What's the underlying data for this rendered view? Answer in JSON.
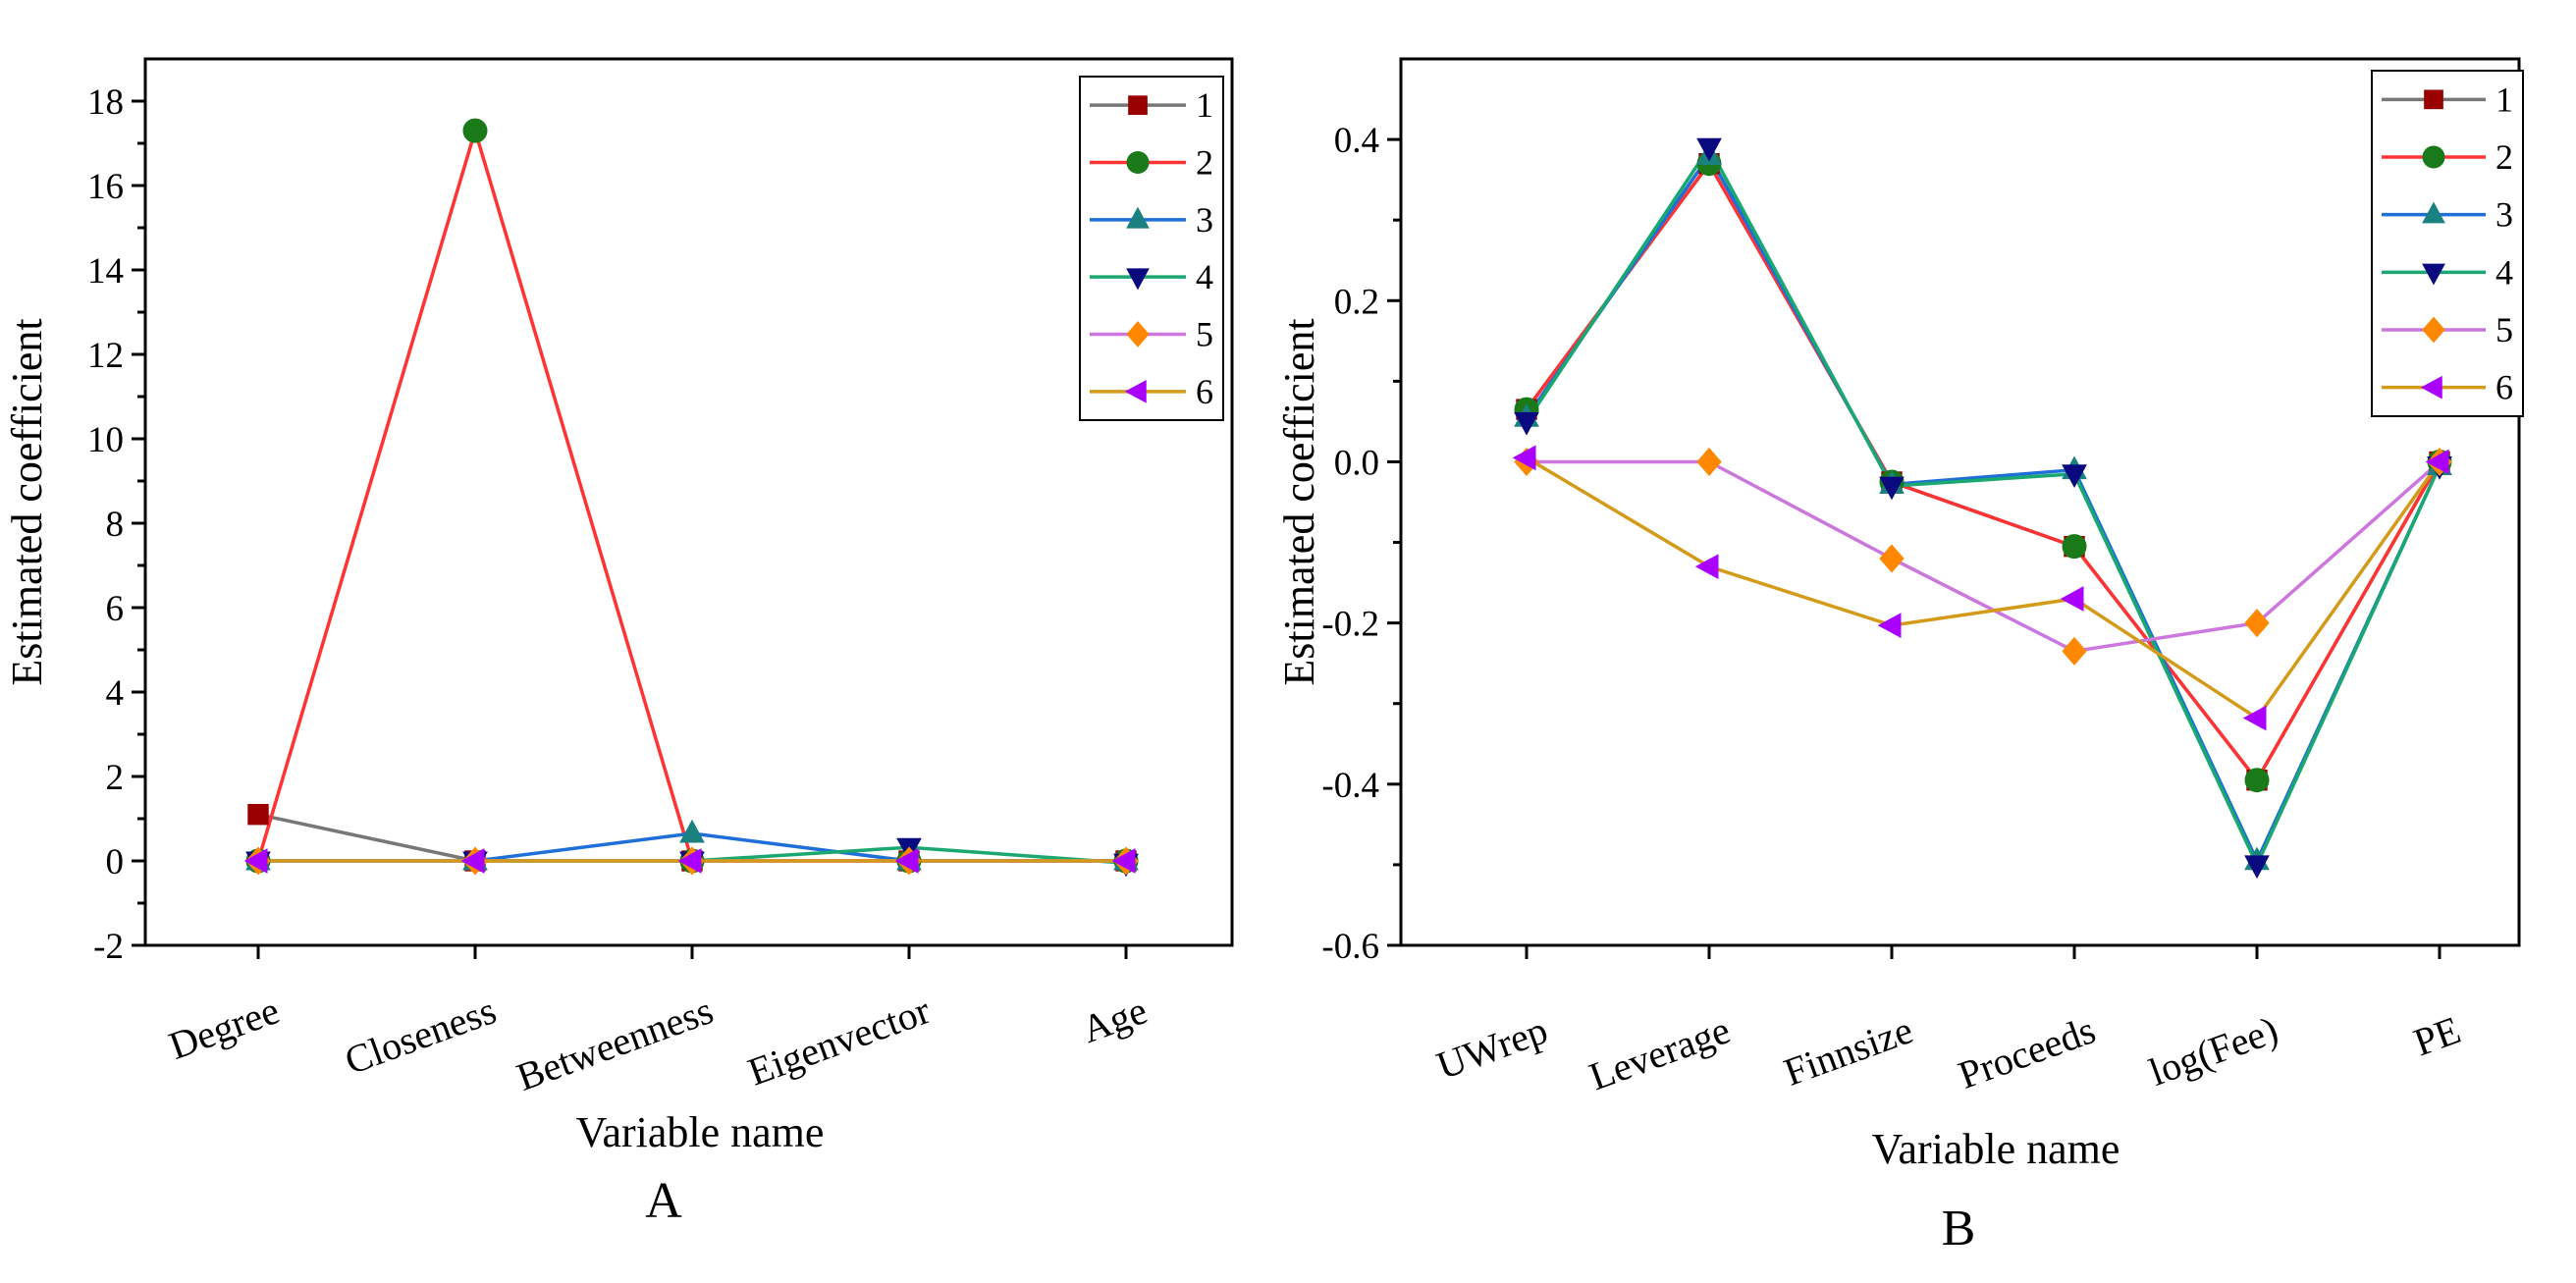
{
  "legend_names": [
    "1",
    "2",
    "3",
    "4",
    "5",
    "6"
  ],
  "chart_data": [
    {
      "type": "line",
      "panel_label": "A",
      "xlabel": "Variable name",
      "ylabel": "Estimated coefficient",
      "categories": [
        "Degree",
        "Closeness",
        "Betweenness",
        "Eigenvector",
        "Age"
      ],
      "ylim": [
        -2,
        19
      ],
      "yticks": [
        -2,
        0,
        2,
        4,
        6,
        8,
        10,
        12,
        14,
        16,
        18
      ],
      "ytick_labels": [
        "-2",
        "0",
        "2",
        "4",
        "6",
        "8",
        "10",
        "12",
        "14",
        "16",
        "18"
      ],
      "legend_position": "top-right",
      "series": [
        {
          "name": "1",
          "color": "#777777",
          "marker": "square",
          "marker_color": "#990000",
          "values": [
            1.1,
            0,
            0,
            0,
            0
          ]
        },
        {
          "name": "2",
          "color": "#ff3333",
          "marker": "circle",
          "marker_color": "#1a7a1a",
          "values": [
            0,
            17.3,
            0,
            0,
            0
          ]
        },
        {
          "name": "3",
          "color": "#1e6fd8",
          "marker": "triangle-up",
          "marker_color": "#1a8080",
          "values": [
            0,
            0,
            0.65,
            0,
            0
          ]
        },
        {
          "name": "4",
          "color": "#1aa870",
          "marker": "triangle-down",
          "marker_color": "#0a0a80",
          "values": [
            0,
            0,
            0,
            0.32,
            -0.05
          ]
        },
        {
          "name": "5",
          "color": "#cc77dd",
          "marker": "diamond",
          "marker_color": "#ff8800",
          "values": [
            0,
            0,
            0,
            0,
            0
          ]
        },
        {
          "name": "6",
          "color": "#d49a1a",
          "marker": "triangle-left",
          "marker_color": "#aa00ff",
          "values": [
            0,
            0,
            0,
            0,
            0
          ]
        }
      ]
    },
    {
      "type": "line",
      "panel_label": "B",
      "xlabel": "Variable name",
      "ylabel": "Estimated coefficient",
      "categories": [
        "UWrep",
        "Leverage",
        "Finnsize",
        "Proceeds",
        "log(Fee)",
        "PE"
      ],
      "ylim": [
        -0.6,
        0.5
      ],
      "yticks": [
        -0.6,
        -0.4,
        -0.2,
        0.0,
        0.2,
        0.4
      ],
      "ytick_labels": [
        "-0.6",
        "-0.4",
        "-0.2",
        "0.0",
        "0.2",
        "0.4"
      ],
      "legend_position": "top-right",
      "series": [
        {
          "name": "1",
          "color": "#777777",
          "marker": "square",
          "marker_color": "#990000",
          "values": [
            0.065,
            0.37,
            -0.025,
            -0.105,
            -0.395,
            0.0
          ]
        },
        {
          "name": "2",
          "color": "#ff3333",
          "marker": "circle",
          "marker_color": "#1a7a1a",
          "values": [
            0.065,
            0.37,
            -0.025,
            -0.105,
            -0.395,
            0.0
          ]
        },
        {
          "name": "3",
          "color": "#1e6fd8",
          "marker": "triangle-up",
          "marker_color": "#1a8080",
          "values": [
            0.055,
            0.38,
            -0.028,
            -0.01,
            -0.495,
            -0.005
          ]
        },
        {
          "name": "4",
          "color": "#1aa870",
          "marker": "triangle-down",
          "marker_color": "#0a0a80",
          "values": [
            0.05,
            0.39,
            -0.03,
            -0.015,
            -0.5,
            -0.005
          ]
        },
        {
          "name": "5",
          "color": "#cc77dd",
          "marker": "diamond",
          "marker_color": "#ff8800",
          "values": [
            0.0,
            0.0,
            -0.12,
            -0.235,
            -0.2,
            0.0
          ]
        },
        {
          "name": "6",
          "color": "#d49a1a",
          "marker": "triangle-left",
          "marker_color": "#aa00ff",
          "values": [
            0.005,
            -0.13,
            -0.203,
            -0.17,
            -0.318,
            0.0
          ]
        }
      ]
    }
  ]
}
